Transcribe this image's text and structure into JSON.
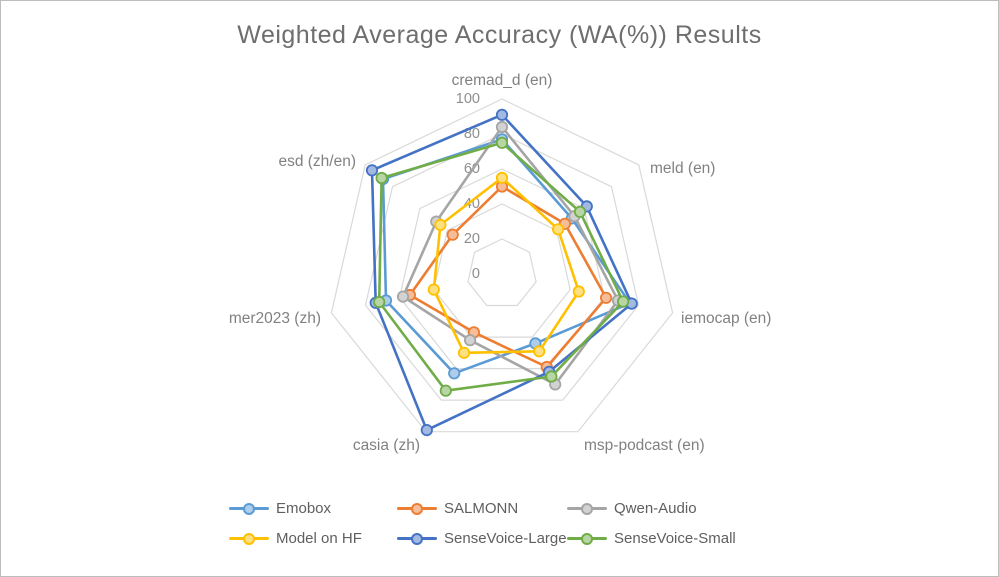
{
  "title": "Weighted Average Accuracy (WA(%)) Results",
  "chart_data": {
    "type": "radar",
    "title": "Weighted Average Accuracy (WA(%)) Results",
    "categories": [
      "cremad_d (en)",
      "meld (en)",
      "iemocap (en)",
      "msp-podcast (en)",
      "casia (zh)",
      "mer2023 (zh)",
      "esd  (zh/en)"
    ],
    "axis": {
      "min": 0,
      "max": 100,
      "step": 20,
      "tick_labels": [
        "0",
        "20",
        "40",
        "60",
        "80",
        "100"
      ]
    },
    "grid": true,
    "gridline_color": "#d9d9d9",
    "legend_position": "bottom",
    "series": [
      {
        "name": "Emobox",
        "color": "#5B9BD5",
        "values": [
          77,
          51,
          75,
          44,
          63,
          68,
          87
        ]
      },
      {
        "name": "SALMONN",
        "color": "#ED7D31",
        "values": [
          50,
          46,
          61,
          59,
          37,
          54,
          36
        ]
      },
      {
        "name": "Qwen-Audio",
        "color": "#A5A5A5",
        "values": [
          84,
          53,
          68,
          70,
          42,
          58,
          48
        ]
      },
      {
        "name": "Model on HF",
        "color": "#FFC000",
        "values": [
          55,
          41,
          45,
          49,
          50,
          40,
          45
        ]
      },
      {
        "name": "SenseVoice-Large",
        "color": "#4472C4",
        "values": [
          91,
          62,
          76,
          62,
          99,
          74,
          95
        ]
      },
      {
        "name": "SenseVoice-Small",
        "color": "#70AD47",
        "values": [
          75,
          57,
          71,
          65,
          74,
          72,
          88
        ]
      }
    ]
  },
  "text_colors": {
    "title": "#6e6e6e",
    "axis_labels": "#818181",
    "tick_labels": "#8e8e8e",
    "legend": "#5f5f5f"
  }
}
